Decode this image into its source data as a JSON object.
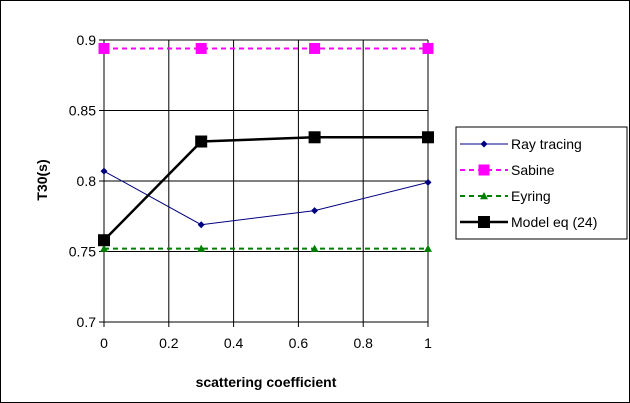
{
  "chart_data": {
    "type": "line",
    "title": "",
    "xlabel": "scattering coefficient",
    "ylabel": "T30(s)",
    "xlim": [
      0,
      1
    ],
    "ylim": [
      0.7,
      0.9
    ],
    "x_ticks": [
      "0",
      "0.2",
      "0.4",
      "0.6",
      "0.8",
      "1"
    ],
    "y_ticks": [
      "0.7",
      "0.75",
      "0.8",
      "0.85",
      "0.9"
    ],
    "grid": true,
    "legend_position": "right",
    "series": [
      {
        "name": "Ray tracing",
        "color": "#000080",
        "style": "solid",
        "marker": "diamond",
        "x": [
          0,
          0.3,
          0.65,
          1
        ],
        "y": [
          0.807,
          0.769,
          0.779,
          0.799
        ]
      },
      {
        "name": "Sabine",
        "color": "#ff00ff",
        "style": "dashed",
        "marker": "square",
        "x": [
          0,
          0.3,
          0.65,
          1
        ],
        "y": [
          0.894,
          0.894,
          0.894,
          0.894
        ]
      },
      {
        "name": "Eyring",
        "color": "#008000",
        "style": "dashed",
        "marker": "triangle",
        "x": [
          0,
          0.3,
          0.65,
          1
        ],
        "y": [
          0.752,
          0.752,
          0.752,
          0.752
        ]
      },
      {
        "name": "Model eq (24)",
        "color": "#000000",
        "style": "solid",
        "marker": "square",
        "x": [
          0,
          0.3,
          0.65,
          1
        ],
        "y": [
          0.758,
          0.828,
          0.831,
          0.831
        ]
      }
    ]
  }
}
